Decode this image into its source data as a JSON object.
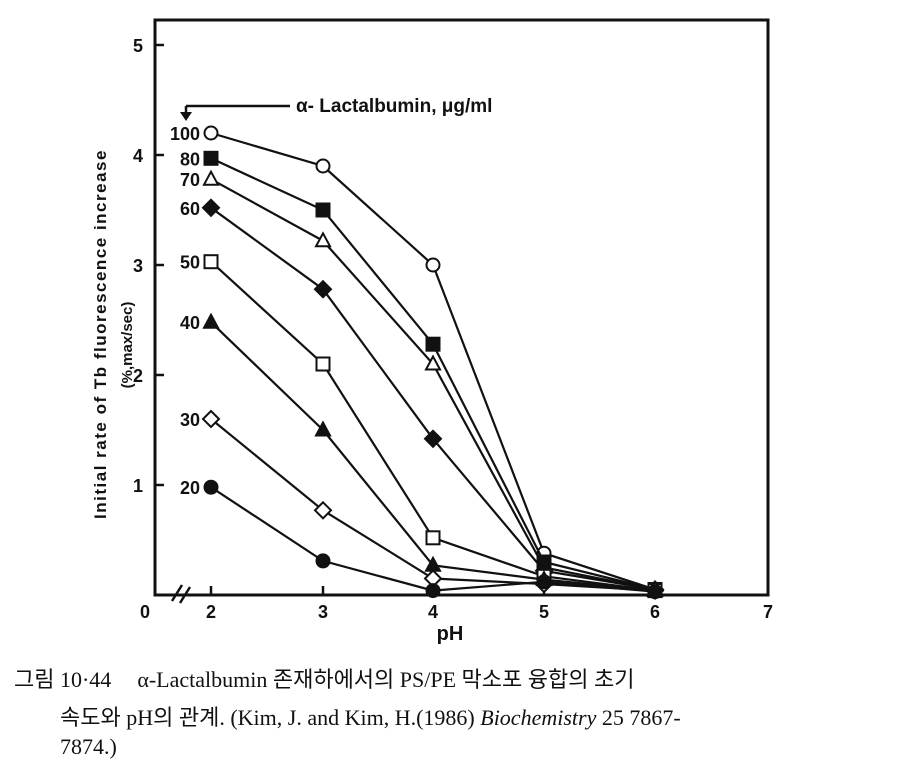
{
  "chart_data": {
    "type": "line",
    "xlabel": "pH",
    "ylabel": "Initial rate of Tb fluorescence increase",
    "ylabel_unit": "(%,max/sec)",
    "legend_title": "α- Lactalbumin, μg/ml",
    "xlim": [
      0,
      7
    ],
    "ylim": [
      0,
      5
    ],
    "x_ticks": [
      "0",
      "2",
      "3",
      "4",
      "5",
      "6",
      "7"
    ],
    "y_ticks": [
      "1",
      "2",
      "3",
      "4",
      "5"
    ],
    "x": [
      2,
      3,
      4,
      5,
      6
    ],
    "series": [
      {
        "name": "100",
        "marker": "open-circle",
        "values": [
          4.2,
          3.9,
          3.0,
          0.38,
          0.05
        ]
      },
      {
        "name": "80",
        "marker": "filled-square",
        "values": [
          3.97,
          3.5,
          2.28,
          0.3,
          0.05
        ]
      },
      {
        "name": "70",
        "marker": "open-triangle",
        "values": [
          3.78,
          3.22,
          2.1,
          0.25,
          0.05
        ]
      },
      {
        "name": "60",
        "marker": "filled-diamond",
        "values": [
          3.52,
          2.78,
          1.42,
          0.22,
          0.05
        ]
      },
      {
        "name": "50",
        "marker": "open-square",
        "values": [
          3.03,
          2.1,
          0.52,
          0.17,
          0.04
        ]
      },
      {
        "name": "40",
        "marker": "filled-triangle",
        "values": [
          2.48,
          1.5,
          0.27,
          0.14,
          0.04
        ]
      },
      {
        "name": "30",
        "marker": "open-diamond",
        "values": [
          1.6,
          0.77,
          0.15,
          0.1,
          0.04
        ]
      },
      {
        "name": "20",
        "marker": "filled-circle",
        "values": [
          0.98,
          0.31,
          0.04,
          0.12,
          0.03
        ]
      }
    ]
  },
  "caption": {
    "label": "그림 10·44",
    "line1": "α-Lactalbumin 존재하에서의 PS/PE 막소포 융합의 초기",
    "line2_a": "속도와 pH의 관계. (Kim, J. and Kim, H.(1986) ",
    "line2_journal": "Biochemistry",
    "line2_b": " 25 7867-",
    "line3": "7874.)"
  }
}
